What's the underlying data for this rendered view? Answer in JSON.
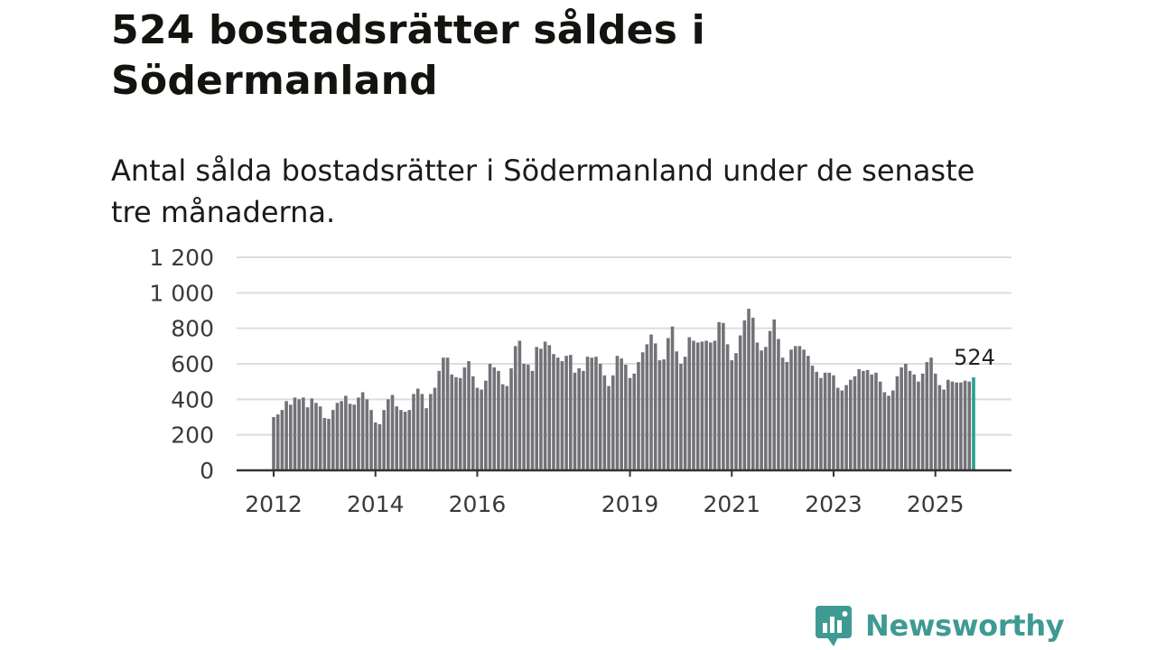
{
  "title": "524 bostadsrätter såldes i Södermanland",
  "subtitle": "Antal sålda bostadsrätter i Södermanland under de senaste tre månaderna.",
  "brand": "Newsworthy",
  "colors": {
    "bar": "#737278",
    "highlight": "#2a9d8f",
    "grid": "#dddddd",
    "axis": "#333333",
    "brand": "#3f9a93"
  },
  "chart_data": {
    "type": "bar",
    "title": "524 bostadsrätter såldes i Södermanland",
    "subtitle": "Antal sålda bostadsrätter i Södermanland under de senaste tre månaderna.",
    "xlabel": "",
    "ylabel": "",
    "ylim": [
      0,
      1200
    ],
    "yticks": [
      0,
      200,
      400,
      600,
      800,
      1000,
      1200
    ],
    "ytick_labels": [
      "0",
      "200",
      "400",
      "600",
      "800",
      "1 000",
      "1 200"
    ],
    "start": "2012-01",
    "frequency": "monthly",
    "x_ticks": [
      {
        "label": "2012",
        "index": 0
      },
      {
        "label": "2014",
        "index": 24
      },
      {
        "label": "2016",
        "index": 48
      },
      {
        "label": "2019",
        "index": 84
      },
      {
        "label": "2021",
        "index": 108
      },
      {
        "label": "2023",
        "index": 132
      },
      {
        "label": "2025",
        "index": 156
      }
    ],
    "grid": true,
    "highlight_label": "524",
    "values": [
      300,
      315,
      340,
      390,
      370,
      410,
      400,
      410,
      355,
      405,
      380,
      360,
      295,
      290,
      340,
      380,
      390,
      420,
      375,
      370,
      410,
      440,
      400,
      340,
      270,
      260,
      340,
      400,
      425,
      360,
      340,
      330,
      340,
      430,
      460,
      430,
      350,
      430,
      465,
      560,
      635,
      635,
      540,
      525,
      520,
      580,
      615,
      530,
      465,
      455,
      505,
      600,
      580,
      560,
      485,
      475,
      575,
      700,
      730,
      600,
      595,
      560,
      695,
      685,
      725,
      705,
      655,
      635,
      615,
      645,
      650,
      550,
      575,
      560,
      640,
      635,
      640,
      600,
      535,
      475,
      535,
      645,
      630,
      595,
      520,
      545,
      610,
      665,
      710,
      765,
      715,
      620,
      625,
      745,
      810,
      670,
      600,
      640,
      750,
      730,
      720,
      725,
      730,
      720,
      730,
      835,
      830,
      710,
      620,
      660,
      760,
      845,
      910,
      860,
      720,
      675,
      695,
      785,
      850,
      740,
      635,
      610,
      680,
      700,
      700,
      680,
      645,
      590,
      555,
      520,
      550,
      550,
      535,
      465,
      450,
      480,
      510,
      530,
      570,
      560,
      565,
      540,
      550,
      500,
      440,
      420,
      450,
      530,
      580,
      600,
      560,
      540,
      500,
      545,
      610,
      635,
      545,
      480,
      455,
      510,
      500,
      495,
      495,
      505,
      500,
      524
    ]
  }
}
